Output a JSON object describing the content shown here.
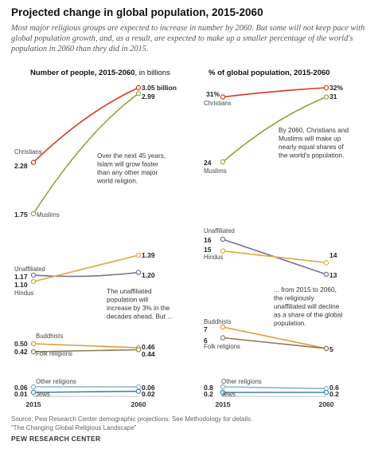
{
  "title": "Projected change in global population, 2015-2060",
  "subtitle": "Most major religious groups are expected to increase in number by 2060. But some will not keep pace with global population growth, and, as a result, are expected to make up a smaller percentage of the world's population in 2060 than they did in 2015.",
  "colors": {
    "Christians": "#d4391e",
    "Muslims": "#8ea63f",
    "Unaffiliated": "#7a6e95",
    "Hindus": "#e4a83b",
    "Buddhists": "#e8962e",
    "Folk religions": "#8c7a55",
    "Other religions": "#8fb2c7",
    "Jews": "#3d84b5"
  },
  "chart_data": [
    {
      "type": "line",
      "title": "Number of people, 2015-2060",
      "title_suffix": ", in billions",
      "x": [
        "2015",
        "2060"
      ],
      "series": [
        {
          "name": "Christians",
          "values": [
            2.28,
            3.05
          ],
          "labels": [
            "2.28",
            "3.05 billion"
          ]
        },
        {
          "name": "Muslims",
          "values": [
            1.75,
            2.99
          ],
          "labels": [
            "1.75",
            "2.99"
          ]
        },
        {
          "name": "Unaffiliated",
          "values": [
            1.17,
            1.2
          ],
          "labels": [
            "1.17",
            "1.20"
          ]
        },
        {
          "name": "Hindus",
          "values": [
            1.1,
            1.39
          ],
          "labels": [
            "1.10",
            "1.39"
          ]
        },
        {
          "name": "Buddhists",
          "values": [
            0.5,
            0.46
          ],
          "labels": [
            "0.50",
            "0.46"
          ]
        },
        {
          "name": "Folk religions",
          "values": [
            0.42,
            0.44
          ],
          "labels": [
            "0.42",
            "0.44"
          ]
        },
        {
          "name": "Other religions",
          "values": [
            0.06,
            0.06
          ],
          "labels": [
            "0.06",
            "0.06"
          ]
        },
        {
          "name": "Jews",
          "values": [
            0.01,
            0.02
          ],
          "labels": [
            "0.01",
            "0.02"
          ]
        }
      ],
      "annotations": [
        "Over the next 45 years, Islam will grow faster than any other major world religion.",
        "The unaffiliated population will increase by 3% in the decades ahead. But ..."
      ]
    },
    {
      "type": "line",
      "title": "% of global population, 2015-2060",
      "x": [
        "2015",
        "2060"
      ],
      "series": [
        {
          "name": "Christians",
          "values": [
            31,
            32
          ],
          "labels": [
            "31%",
            "32%"
          ]
        },
        {
          "name": "Muslims",
          "values": [
            24,
            31
          ],
          "labels": [
            "24",
            "31"
          ]
        },
        {
          "name": "Unaffiliated",
          "values": [
            16,
            13
          ],
          "labels": [
            "16",
            "13"
          ]
        },
        {
          "name": "Hindus",
          "values": [
            15,
            14
          ],
          "labels": [
            "15",
            "14"
          ]
        },
        {
          "name": "Buddhists",
          "values": [
            7,
            5
          ],
          "labels": [
            "7",
            "5"
          ]
        },
        {
          "name": "Folk religions",
          "values": [
            6,
            5
          ],
          "labels": [
            "6",
            "5"
          ]
        },
        {
          "name": "Other religions",
          "values": [
            0.8,
            0.6
          ],
          "labels": [
            "0.8",
            "0.6"
          ]
        },
        {
          "name": "Jews",
          "values": [
            0.2,
            0.2
          ],
          "labels": [
            "0.2",
            "0.2"
          ]
        }
      ],
      "annotations": [
        "By 2060, Christians and Muslims will make up nearly equal shares of the world's population.",
        "... from 2015 to 2060, the religiously unaffiliated will decline as a share of the global population."
      ]
    }
  ],
  "source": "Source: Pew Research Center demographic projections. See Methodology for details.",
  "report": "“The Changing Global Religious Landscape”",
  "brand": "PEW RESEARCH CENTER"
}
